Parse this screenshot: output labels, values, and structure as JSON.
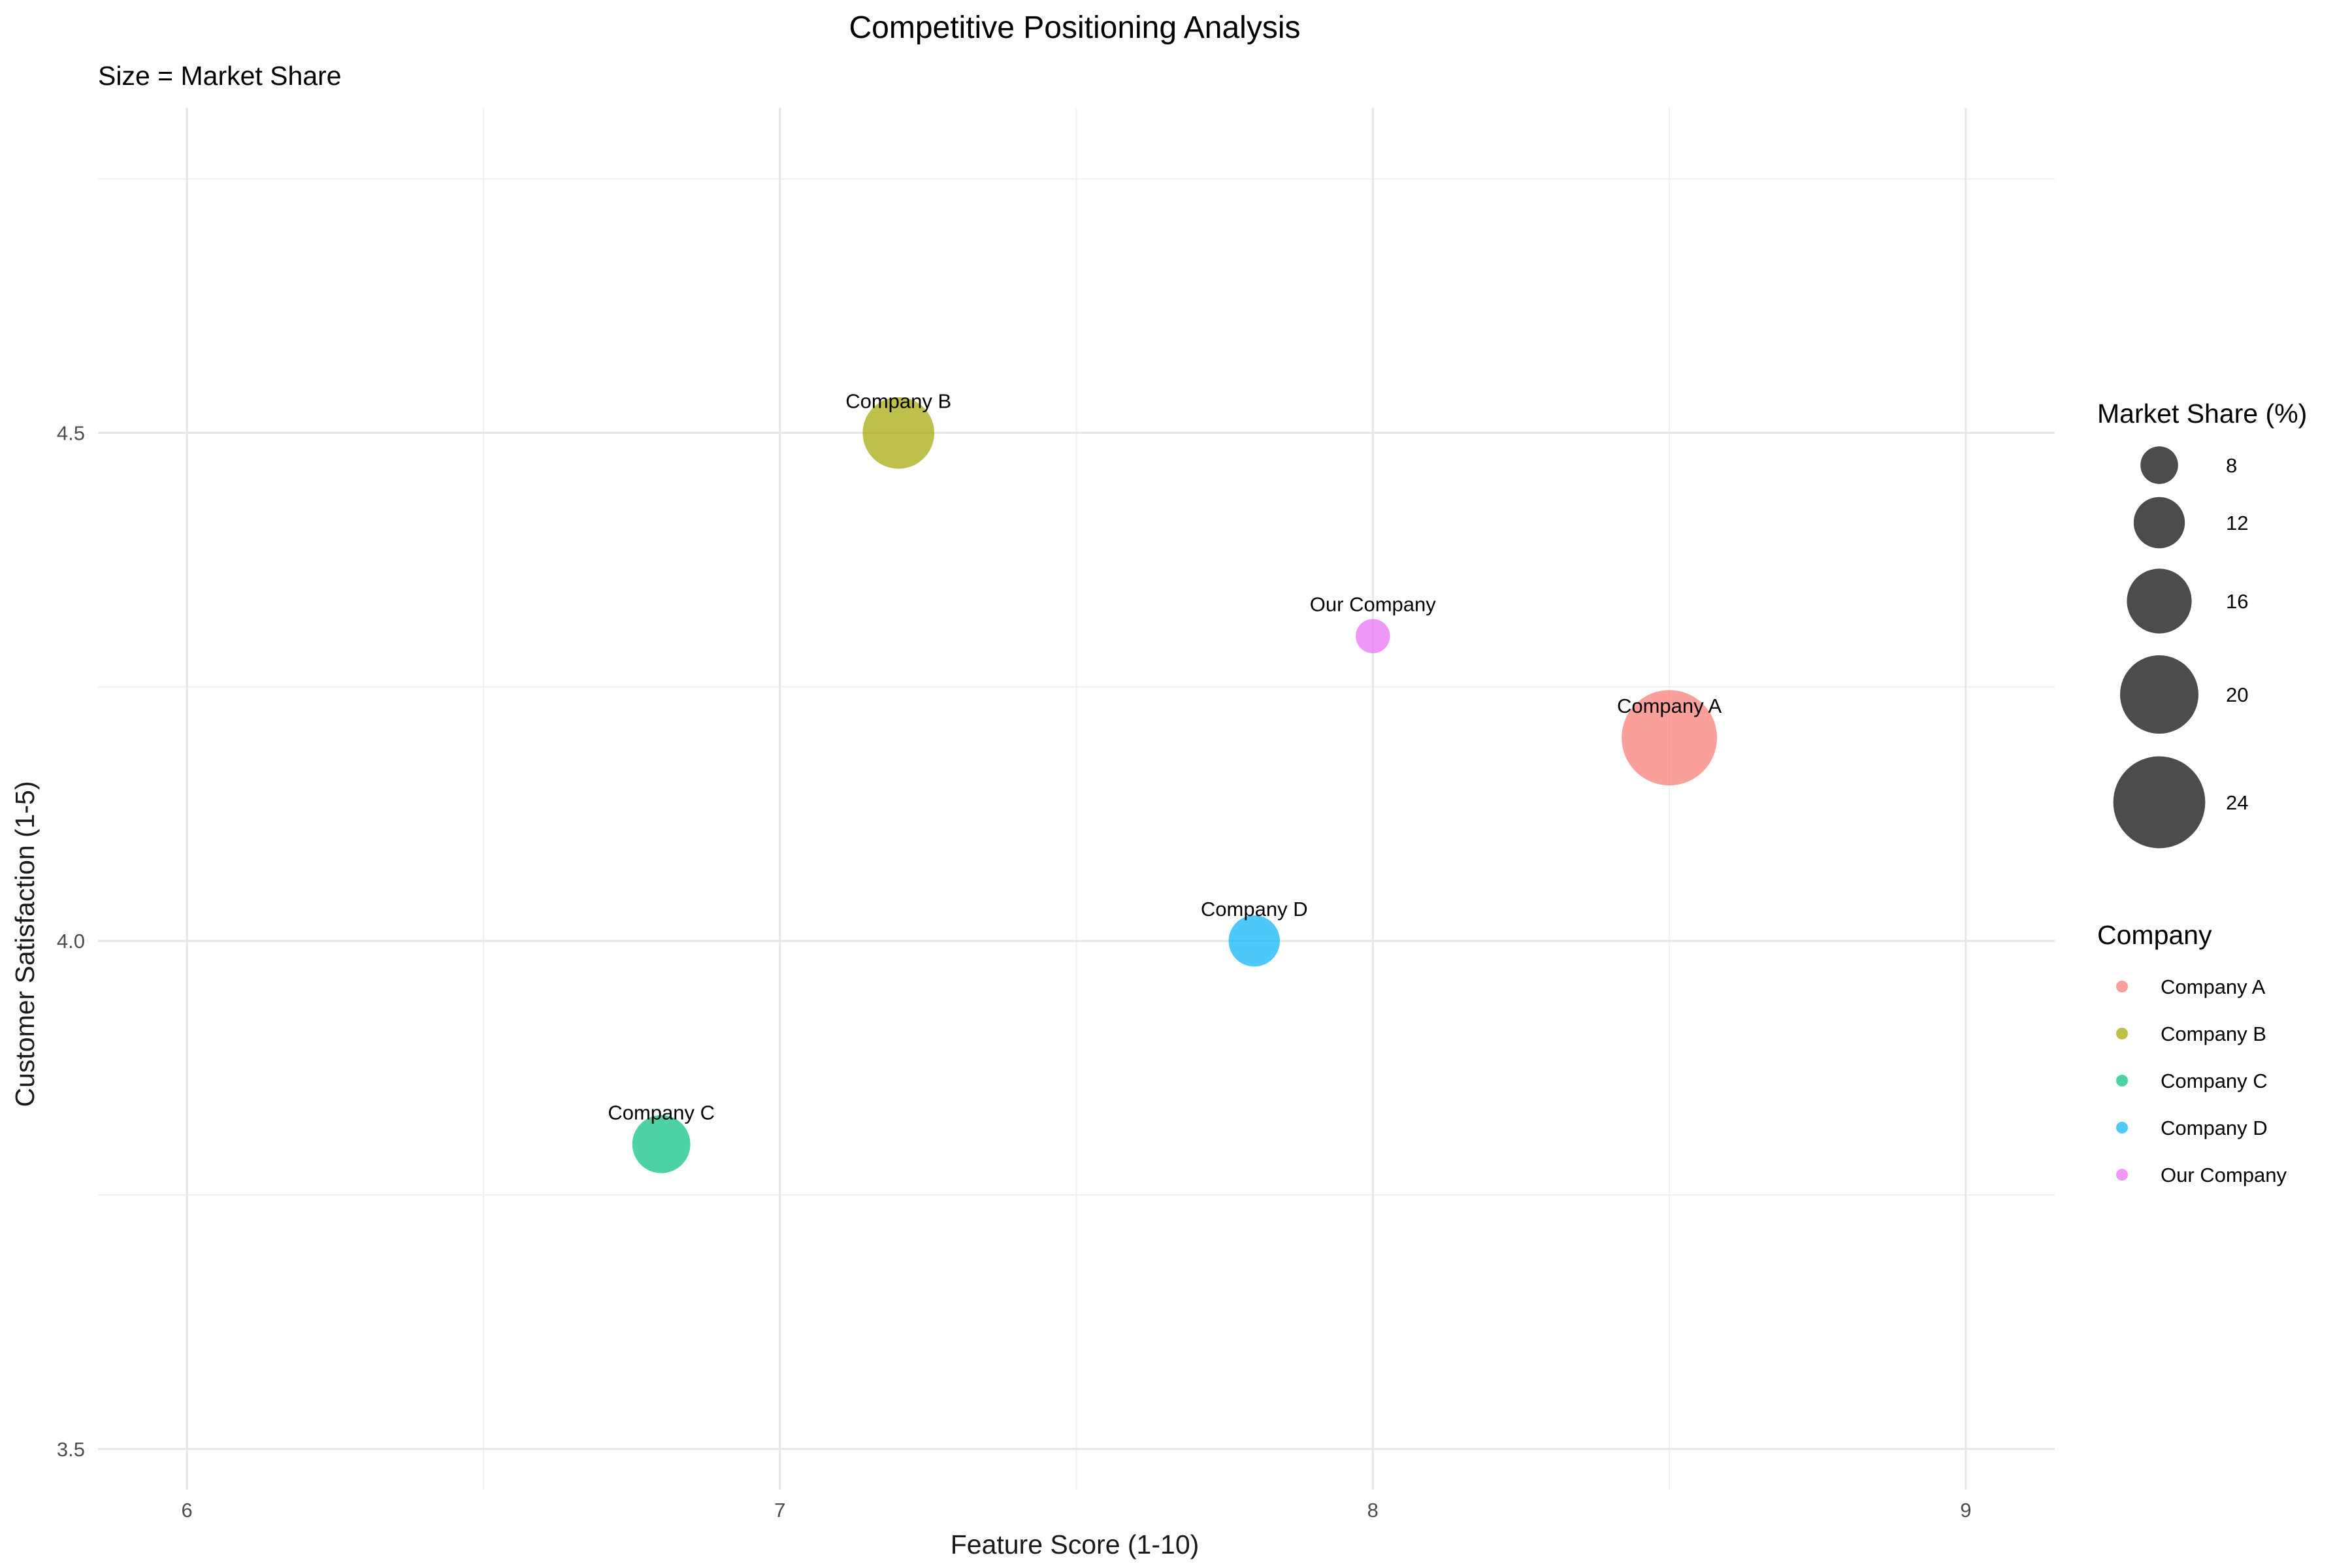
{
  "chart_data": {
    "type": "scatter",
    "title": "Competitive Positioning Analysis",
    "subtitle": "Size = Market Share",
    "xlabel": "Feature Score (1-10)",
    "ylabel": "Customer Satisfaction (1-5)",
    "xlim": [
      5.85,
      9.15
    ],
    "ylim": [
      3.46,
      4.82
    ],
    "x_ticks": [
      "6",
      "7",
      "8",
      "9"
    ],
    "x_tick_values": [
      6,
      7,
      8,
      9
    ],
    "y_ticks": [
      "3.5",
      "4.0",
      "4.5"
    ],
    "y_tick_values": [
      3.5,
      4.0,
      4.5
    ],
    "grid": true,
    "points": [
      {
        "label": "Company A",
        "feature_score": 8.5,
        "satisfaction": 4.2,
        "market_share": 25,
        "color": "#F8766D"
      },
      {
        "label": "Company B",
        "feature_score": 7.2,
        "satisfaction": 4.5,
        "market_share": 18,
        "color": "#A3A500"
      },
      {
        "label": "Company C",
        "feature_score": 6.8,
        "satisfaction": 3.8,
        "market_share": 14,
        "color": "#00BF7D"
      },
      {
        "label": "Company D",
        "feature_score": 7.8,
        "satisfaction": 4.0,
        "market_share": 12,
        "color": "#00B0F6"
      },
      {
        "label": "Our Company",
        "feature_score": 8.0,
        "satisfaction": 4.3,
        "market_share": 7,
        "color": "#E76BF3"
      }
    ],
    "size_legend": {
      "title": "Market Share (%)",
      "values": [
        8,
        12,
        16,
        20,
        24
      ],
      "labels": [
        "8",
        "12",
        "16",
        "20",
        "24"
      ]
    },
    "color_legend": {
      "title": "Company",
      "labels": [
        "Company A",
        "Company B",
        "Company C",
        "Company D",
        "Our Company"
      ]
    },
    "legend_position": "right"
  }
}
